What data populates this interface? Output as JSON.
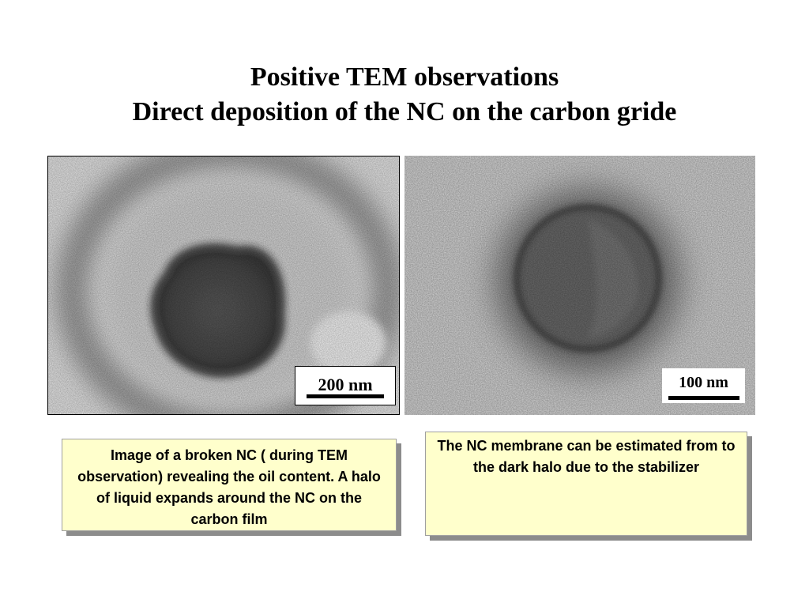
{
  "slide": {
    "title_line1": "Positive TEM observations",
    "title_line2": "Direct deposition of the NC on the carbon gride"
  },
  "images": {
    "left": {
      "scale_label": "200 nm",
      "icon": "tem-micrograph-broken-nc"
    },
    "right": {
      "scale_label": "100 nm",
      "icon": "tem-micrograph-nc-halo"
    }
  },
  "notes": {
    "left_caption": "Image of a broken NC ( during TEM observation) revealing the oil content.  A halo of liquid expands around the NC on the carbon film",
    "right_caption": "The NC membrane can be estimated from to the dark halo due to the stabilizer"
  },
  "colors": {
    "note_background": "#ffffcc",
    "note_shadow": "#8c8c8c"
  }
}
